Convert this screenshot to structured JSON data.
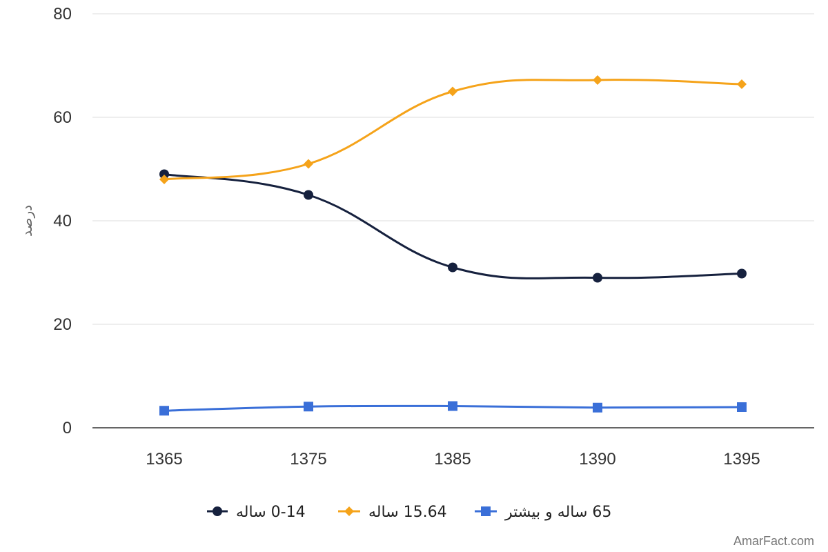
{
  "chart_data": {
    "type": "line",
    "categories": [
      "1365",
      "1375",
      "1385",
      "1390",
      "1395"
    ],
    "ylabel": "درصد",
    "xlabel": "",
    "ylim": [
      0,
      80
    ],
    "yticks": [
      "0",
      "20",
      "40",
      "60",
      "80"
    ],
    "grid": true,
    "legend_position": "bottom",
    "series": [
      {
        "name": "0-14 ساله",
        "values": [
          49,
          45,
          31,
          29,
          29.8
        ],
        "color": "#16213e",
        "marker": "circle"
      },
      {
        "name": "15.64 ساله",
        "values": [
          48,
          51,
          65,
          67.2,
          66.4
        ],
        "color": "#f5a31a",
        "marker": "diamond"
      },
      {
        "name": "65 ساله و بیشتر",
        "values": [
          3.3,
          4.1,
          4.2,
          3.9,
          4.0
        ],
        "color": "#3a6fd8",
        "marker": "square"
      }
    ]
  },
  "watermark": "AmarFact.com"
}
